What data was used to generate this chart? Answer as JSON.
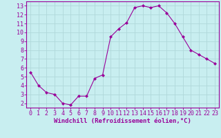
{
  "x": [
    0,
    1,
    2,
    3,
    4,
    5,
    6,
    7,
    8,
    9,
    10,
    11,
    12,
    13,
    14,
    15,
    16,
    17,
    18,
    19,
    20,
    21,
    22,
    23
  ],
  "y": [
    5.5,
    4.0,
    3.2,
    3.0,
    2.0,
    1.8,
    2.8,
    2.8,
    4.8,
    5.2,
    9.5,
    10.4,
    11.1,
    12.8,
    13.0,
    12.8,
    13.0,
    12.2,
    11.0,
    9.5,
    8.0,
    7.5,
    7.0,
    6.5
  ],
  "line_color": "#990099",
  "marker": "D",
  "marker_size": 2.0,
  "background_color": "#c8eef0",
  "grid_color": "#b0d8da",
  "xlabel": "Windchill (Refroidissement éolien,°C)",
  "ylabel": "",
  "xlim": [
    -0.5,
    23.5
  ],
  "ylim": [
    1.5,
    13.5
  ],
  "yticks": [
    2,
    3,
    4,
    5,
    6,
    7,
    8,
    9,
    10,
    11,
    12,
    13
  ],
  "xticks": [
    0,
    1,
    2,
    3,
    4,
    5,
    6,
    7,
    8,
    9,
    10,
    11,
    12,
    13,
    14,
    15,
    16,
    17,
    18,
    19,
    20,
    21,
    22,
    23
  ],
  "tick_color": "#990099",
  "label_color": "#990099",
  "spine_color": "#990099",
  "font_size": 6,
  "xlabel_font_size": 6.5
}
